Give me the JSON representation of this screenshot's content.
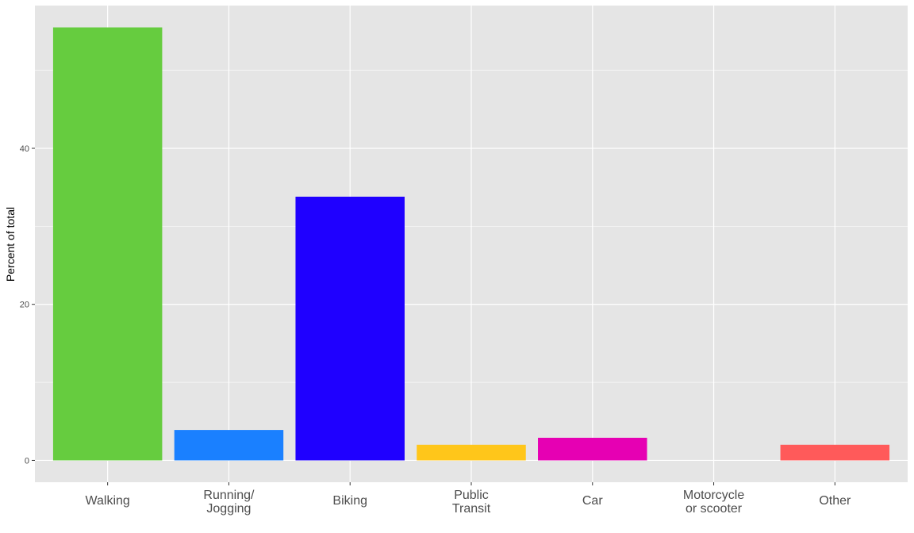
{
  "chart_data": {
    "type": "bar",
    "title": "",
    "xlabel": "",
    "ylabel": "Percent of total",
    "categories": [
      [
        "Walking"
      ],
      [
        "Running/",
        "Jogging"
      ],
      [
        "Biking"
      ],
      [
        "Public",
        "Transit"
      ],
      [
        "Car"
      ],
      [
        "Motorcycle",
        "or scooter"
      ],
      [
        "Other"
      ]
    ],
    "values": [
      55.5,
      3.9,
      33.8,
      2.0,
      2.9,
      0.0,
      2.0
    ],
    "colors": [
      "#66CC3F",
      "#1A80FF",
      "#1F00FF",
      "#FFC61A",
      "#E600B3",
      "#7F7F7F",
      "#FF5A5A"
    ],
    "ylim": [
      -2.8,
      58.3
    ],
    "yticks": [
      0,
      20,
      40
    ],
    "grid": true,
    "panel_background": "#E5E5E5",
    "gridline_color": "#FFFFFF",
    "legend": "none"
  }
}
